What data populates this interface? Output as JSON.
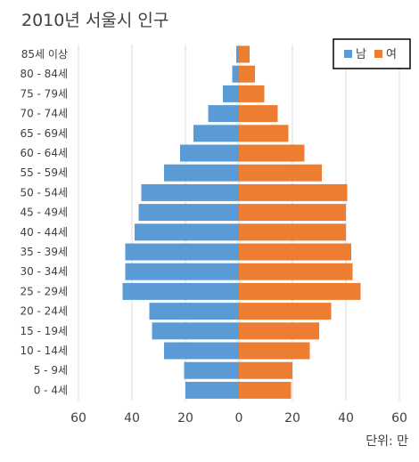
{
  "chart_data": {
    "type": "bar",
    "orientation": "horizontal",
    "title": "2010년 서울시 인구",
    "unit_label": "단위: 만",
    "categories": [
      "85세 이상",
      "80 - 84세",
      "75 - 79세",
      "70 - 74세",
      "65 - 69세",
      "60 - 64세",
      "55 - 59세",
      "50 - 54세",
      "45 - 49세",
      "40 - 44세",
      "35 - 39세",
      "30 - 34세",
      "25 - 29세",
      "20 - 24세",
      "15 - 19세",
      "10 - 14세",
      "5 - 9세",
      "0 - 4세"
    ],
    "series": [
      {
        "name": "남",
        "color": "#5b9bd5",
        "side": "left",
        "values": [
          1.0,
          2.5,
          6.0,
          11.5,
          17.0,
          22.0,
          28.0,
          36.5,
          37.5,
          39.0,
          42.5,
          42.5,
          43.5,
          33.5,
          32.5,
          28.0,
          20.5,
          20.0
        ]
      },
      {
        "name": "여",
        "color": "#ed7d31",
        "side": "right",
        "values": [
          4.0,
          6.0,
          9.5,
          14.5,
          18.5,
          24.5,
          31.0,
          40.5,
          40.0,
          40.0,
          42.0,
          42.5,
          45.5,
          34.5,
          30.0,
          26.5,
          20.0,
          19.5
        ]
      }
    ],
    "xticks": [
      "60",
      "40",
      "20",
      "0",
      "20",
      "40",
      "60"
    ],
    "xlim": [
      -60,
      60
    ],
    "grid": true,
    "legend_position": "top-right"
  }
}
